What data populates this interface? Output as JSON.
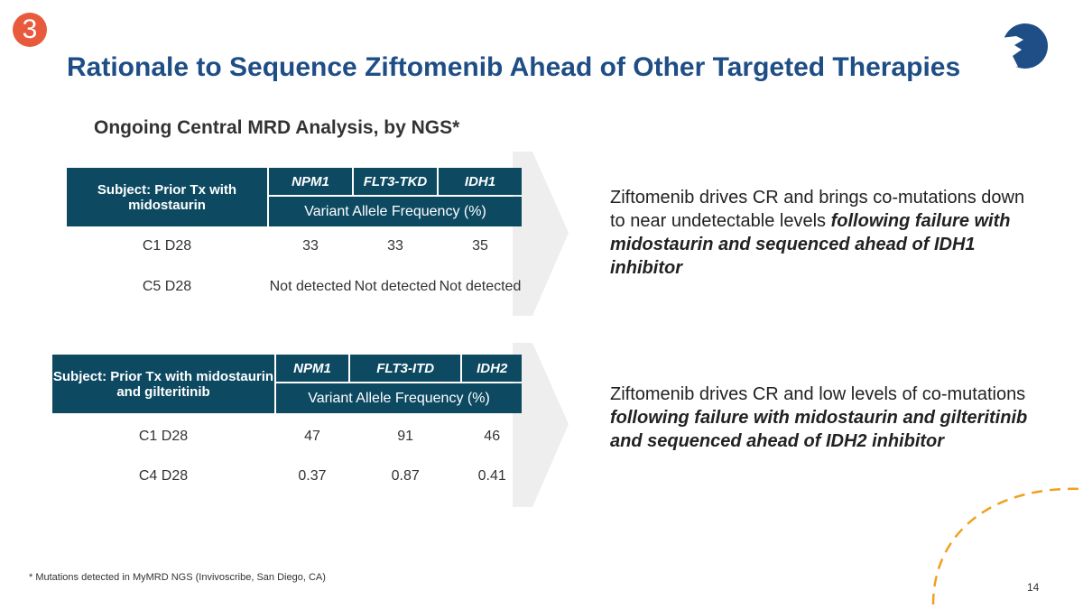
{
  "badge": "3",
  "title": "Rationale to Sequence Ziftomenib Ahead of Other Targeted Therapies",
  "subtitle": "Ongoing Central MRD Analysis, by NGS*",
  "table1": {
    "subject": "Subject: Prior Tx with midostaurin",
    "genes": [
      "NPM1",
      "FLT3-TKD",
      "IDH1"
    ],
    "vaf": "Variant Allele Frequency (%)",
    "rows": [
      {
        "label": "C1 D28",
        "values": [
          "33",
          "33",
          "35"
        ]
      },
      {
        "label": "C5 D28",
        "values": [
          "Not detected",
          "Not detected",
          "Not detected"
        ]
      }
    ]
  },
  "table2": {
    "subject": "Subject: Prior Tx with midostaurin and gilteritinib",
    "genes": [
      "NPM1",
      "FLT3-ITD",
      "IDH2"
    ],
    "vaf": "Variant Allele Frequency (%)",
    "rows": [
      {
        "label": "C1 D28",
        "values": [
          "47",
          "91",
          "46"
        ]
      },
      {
        "label": "C4 D28",
        "values": [
          "0.37",
          "0.87",
          "0.41"
        ]
      }
    ]
  },
  "text1": {
    "plain": "Ziftomenib drives CR and brings co-mutations down to near undetectable levels ",
    "bold": "following failure with midostaurin and sequenced ahead of IDH1 inhibitor"
  },
  "text2": {
    "plain": "Ziftomenib drives CR and low levels of co-mutations ",
    "bold": "following failure with midostaurin and gilteritinib and sequenced ahead of IDH2 inhibitor"
  },
  "footnote": "* Mutations detected in MyMRD NGS (Invivoscribe, San Diego, CA)",
  "page_number": "14",
  "colors": {
    "title": "#1f4e86",
    "table_header": "#0d4a62",
    "badge": "#e85a3c",
    "accent_dash": "#f0a020"
  }
}
